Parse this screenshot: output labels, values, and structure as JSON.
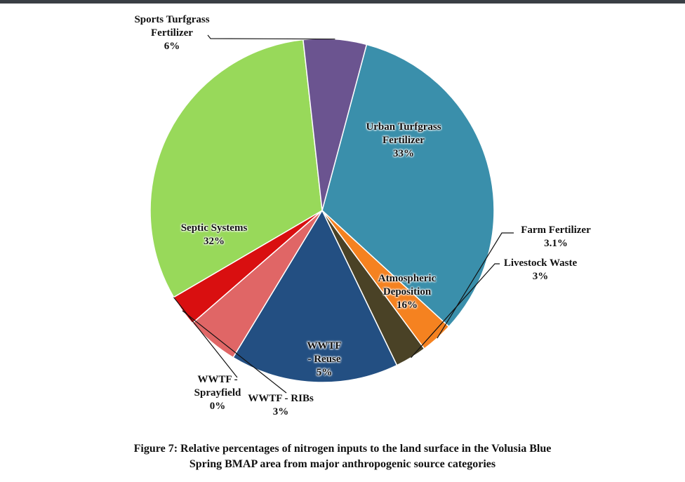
{
  "chart_data": {
    "type": "pie",
    "slices": [
      {
        "name": "Urban Turfgrass Fertilizer",
        "label_lines": [
          "Urban Turfgrass",
          "Fertilizer",
          "33%"
        ],
        "value": 33,
        "color": "#3a8fab"
      },
      {
        "name": "Farm Fertilizer",
        "label_lines": [
          "Farm Fertilizer",
          "3.1%"
        ],
        "value": 3.1,
        "color": "#f58220"
      },
      {
        "name": "Livestock Waste",
        "label_lines": [
          "Livestock Waste",
          "3%"
        ],
        "value": 3,
        "color": "#4a4226"
      },
      {
        "name": "Atmospheric Deposition",
        "label_lines": [
          "Atmospheric",
          "Deposition",
          "16%"
        ],
        "value": 16,
        "color": "#234f82"
      },
      {
        "name": "WWTF - Reuse",
        "label_lines": [
          "WWTF",
          "- Reuse",
          "5%"
        ],
        "value": 5,
        "color": "#e06666"
      },
      {
        "name": "WWTF - RIBs",
        "label_lines": [
          "WWTF - RIBs",
          "3%"
        ],
        "value": 3,
        "color": "#d90f10"
      },
      {
        "name": "WWTF - Sprayfield",
        "label_lines": [
          "WWTF -",
          "Sprayfield",
          "0%"
        ],
        "value": 0,
        "color": "#d90f10"
      },
      {
        "name": "Septic Systems",
        "label_lines": [
          "Septic Systems",
          "32%"
        ],
        "value": 32,
        "color": "#98d95a"
      },
      {
        "name": "Sports Turfgrass Fertilizer",
        "label_lines": [
          "Sports Turfgrass",
          "Fertilizer",
          "6%"
        ],
        "value": 6,
        "color": "#6b5490"
      }
    ]
  },
  "caption": {
    "line1": "Figure 7: Relative percentages of nitrogen inputs to the land surface in the Volusia Blue",
    "line2": "Spring BMAP area from major anthropogenic source categories"
  }
}
